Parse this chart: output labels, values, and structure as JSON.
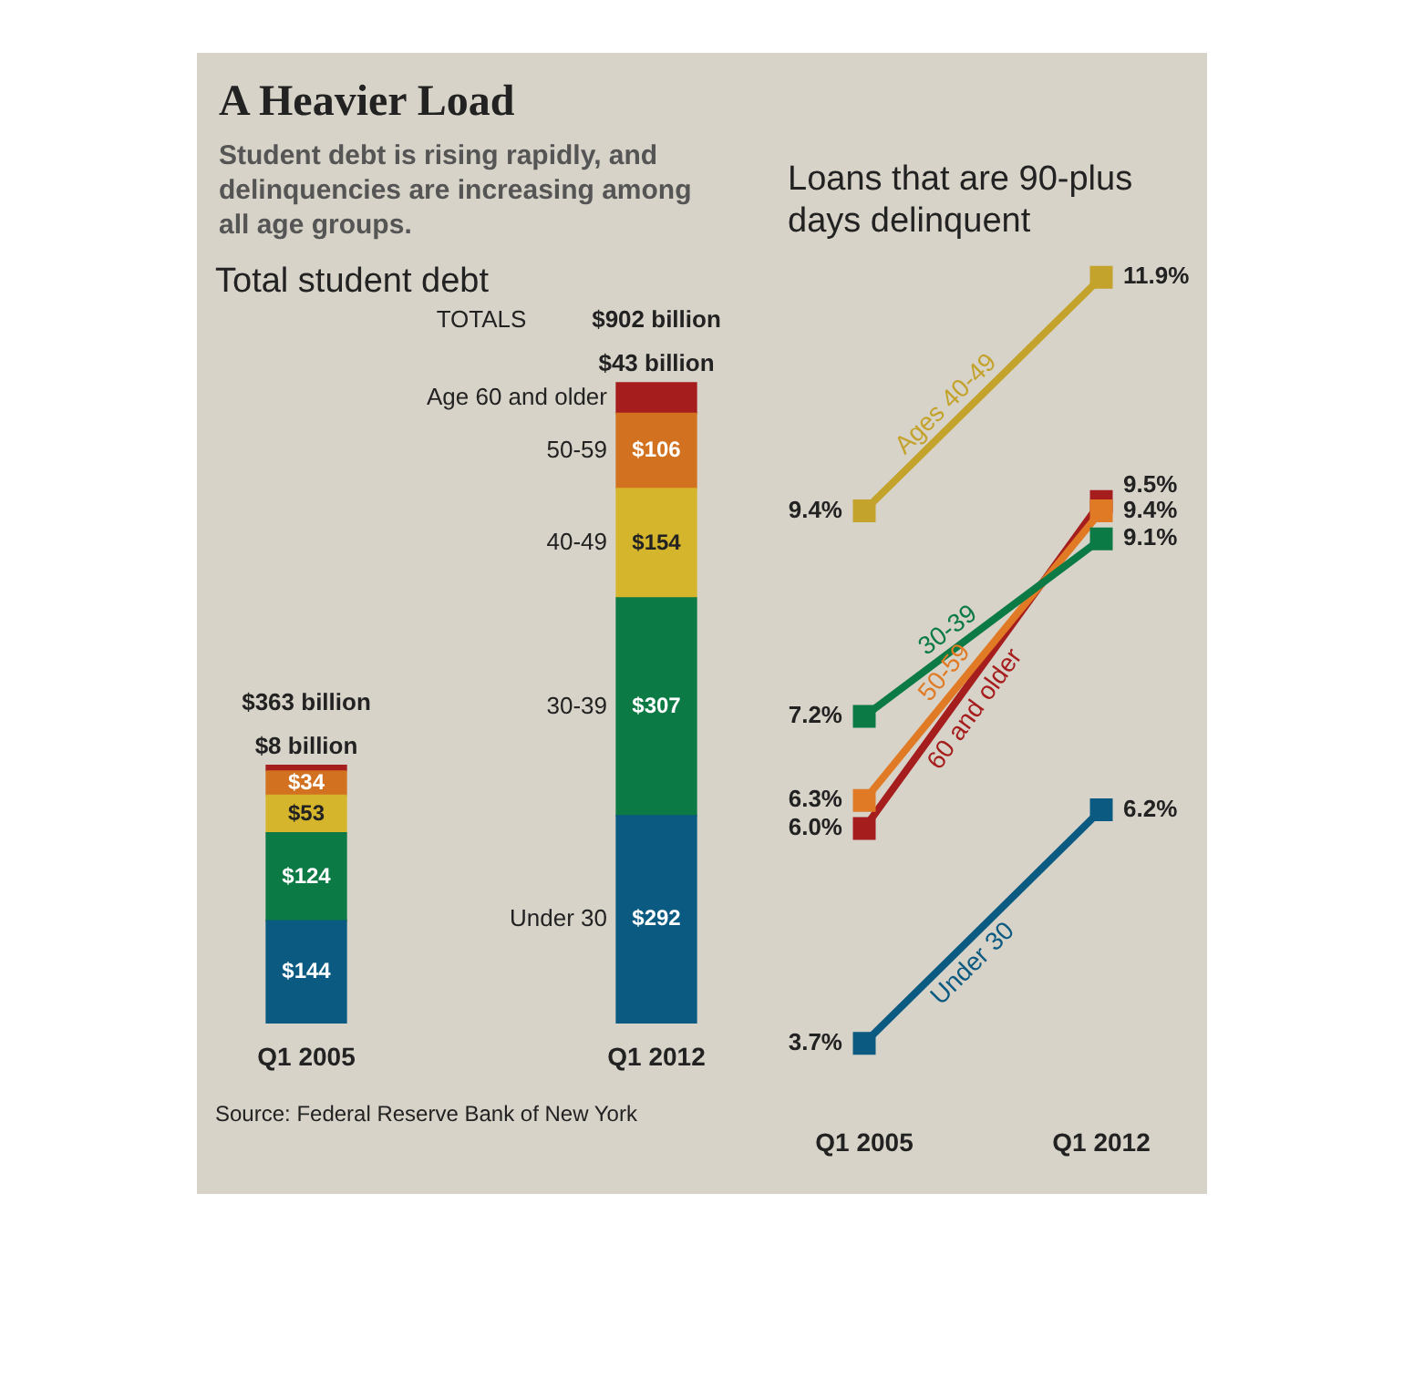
{
  "chart_data": [
    {
      "type": "other",
      "title": "A Heavier Load",
      "subtitle": "Student debt is rising rapidly, and delinquencies are increasing among all age groups."
    },
    {
      "type": "bar",
      "title": "Total student debt",
      "categories": [
        "Q1 2005",
        "Q1 2012"
      ],
      "stacked": true,
      "tick_labels": "x",
      "totals": [
        "$363 billion",
        "$902 billion"
      ],
      "annotations": [
        "TOTALS",
        "Source: Federal Reserve Bank of New York"
      ],
      "series": [
        {
          "name": "Under 30",
          "color": "#0b5a82",
          "values": [
            144,
            292
          ],
          "value_labels": [
            "$144",
            "$292"
          ]
        },
        {
          "name": "30-39",
          "color": "#0b7a45",
          "values": [
            124,
            307
          ],
          "value_labels": [
            "$124",
            "$307"
          ]
        },
        {
          "name": "40-49",
          "color": "#d5b52c",
          "values": [
            53,
            154
          ],
          "value_labels": [
            "$53",
            "$154"
          ]
        },
        {
          "name": "50-59",
          "color": "#d2711f",
          "values": [
            34,
            106
          ],
          "value_labels": [
            "$34",
            "$106"
          ]
        },
        {
          "name": "Age 60 and older",
          "color": "#a51d1d",
          "values": [
            8,
            43
          ],
          "value_labels": [
            "$8 billion",
            "$43 billion"
          ]
        }
      ]
    },
    {
      "type": "line",
      "title": "Loans that are 90-plus days delinquent",
      "categories": [
        "Q1 2005",
        "Q1 2012"
      ],
      "marker": "square",
      "tick_labels": "x",
      "series": [
        {
          "name": "Ages 40-49",
          "color": "#c4a32c",
          "values": [
            9.4,
            11.9
          ],
          "value_labels": [
            "9.4%",
            "11.9%"
          ]
        },
        {
          "name": "30-39",
          "color": "#0b7a45",
          "values": [
            7.2,
            9.1
          ],
          "value_labels": [
            "7.2%",
            "9.1%"
          ]
        },
        {
          "name": "50-59",
          "color": "#e07a25",
          "values": [
            6.3,
            9.4
          ],
          "value_labels": [
            "6.3%",
            "9.4%"
          ]
        },
        {
          "name": "60 and older",
          "color": "#a51d1d",
          "values": [
            6.0,
            9.5
          ],
          "value_labels": [
            "6.0%",
            "9.5%"
          ]
        },
        {
          "name": "Under 30",
          "color": "#0b5a82",
          "values": [
            3.7,
            6.2
          ],
          "value_labels": [
            "3.7%",
            "6.2%"
          ]
        }
      ]
    }
  ]
}
